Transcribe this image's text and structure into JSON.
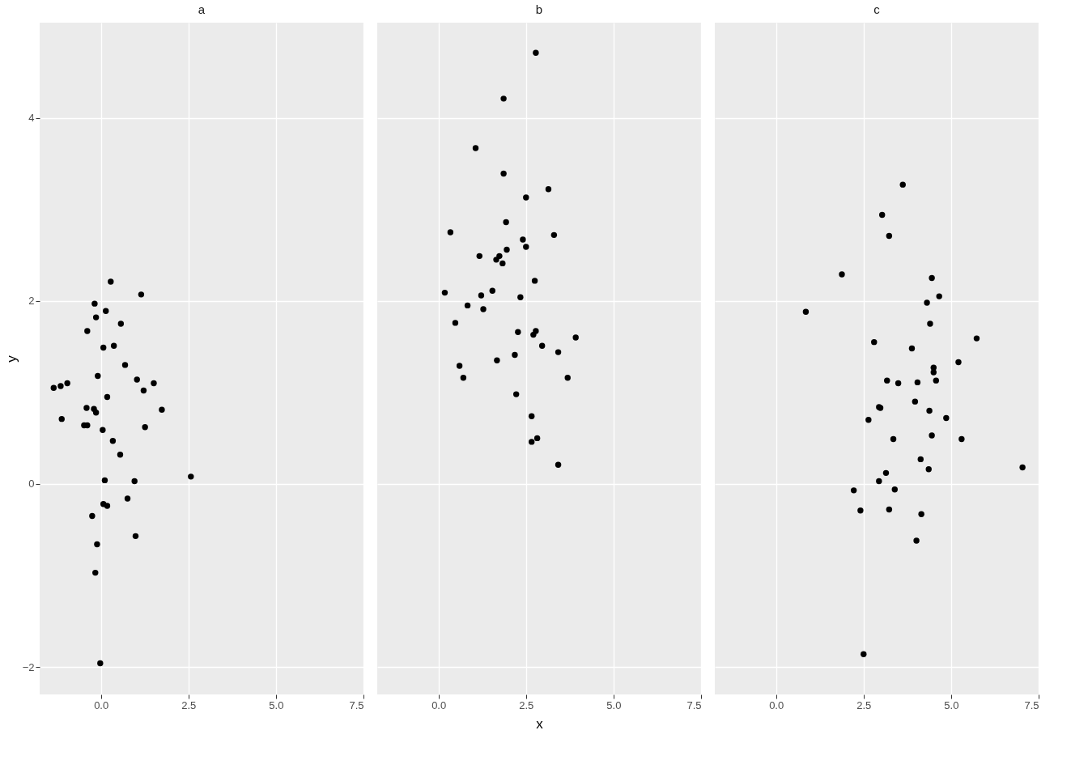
{
  "chart_data": [
    {
      "type": "scatter",
      "title": "a",
      "ylabel": "y",
      "marker": "circle",
      "grid": true,
      "xlim": [
        -1.75,
        7.5
      ],
      "ylim": [
        -2.3,
        5.04
      ],
      "xticks": [
        {
          "value": 0,
          "label": "0.0"
        },
        {
          "value": 2.5,
          "label": "2.5"
        },
        {
          "value": 5,
          "label": "5.0"
        },
        {
          "value": 7.5,
          "label": "7.5"
        }
      ],
      "yticks": [
        -2,
        0,
        2,
        4
      ],
      "series": [
        {
          "color": "#000000",
          "x": [
            -1.35,
            -1.15,
            -0.96,
            -1.12,
            -0.39,
            -0.18,
            -0.14,
            0.14,
            0.28,
            1.15,
            0.57,
            0.37,
            0.07,
            -0.09,
            0.69,
            1.03,
            1.51,
            1.22,
            0.18,
            1.74,
            -0.41,
            -0.48,
            -0.39,
            -0.2,
            -0.14,
            0.05,
            1.26,
            0.34,
            0.55,
            0.11,
            0.96,
            2.57,
            0.76,
            0.07,
            0.18,
            -0.25,
            0.99,
            -0.11,
            -0.16,
            -0.02
          ],
          "values": [
            1.05,
            1.07,
            1.1,
            0.71,
            1.67,
            1.97,
            1.82,
            1.89,
            2.21,
            2.07,
            1.75,
            1.51,
            1.49,
            1.18,
            1.3,
            1.14,
            1.1,
            1.02,
            0.95,
            0.81,
            0.83,
            0.64,
            0.64,
            0.82,
            0.78,
            0.59,
            0.62,
            0.47,
            0.32,
            0.04,
            0.03,
            0.08,
            -0.16,
            -0.22,
            -0.24,
            -0.35,
            -0.57,
            -0.66,
            -0.97,
            -1.96
          ]
        }
      ]
    },
    {
      "type": "scatter",
      "title": "b",
      "xlabel": "x",
      "marker": "circle",
      "grid": true,
      "tick_labels": "x",
      "xlim": [
        -1.75,
        7.5
      ],
      "ylim": [
        -2.3,
        5.04
      ],
      "xticks": [
        {
          "value": 0,
          "label": "0.0"
        },
        {
          "value": 2.5,
          "label": "2.5"
        },
        {
          "value": 5,
          "label": "5.0"
        },
        {
          "value": 7.5,
          "label": "7.5"
        }
      ],
      "yticks": [
        -2,
        0,
        2,
        4
      ],
      "series": [
        {
          "color": "#000000",
          "x": [
            2.78,
            1.86,
            1.06,
            1.86,
            2.5,
            3.14,
            0.34,
            3.3,
            1.93,
            1.17,
            1.74,
            1.65,
            1.83,
            1.95,
            2.41,
            2.5,
            0.18,
            1.22,
            1.54,
            2.34,
            2.75,
            0.83,
            1.28,
            0.48,
            2.27,
            2.78,
            2.71,
            3.92,
            2.96,
            3.42,
            1.67,
            2.18,
            0.6,
            0.71,
            3.69,
            2.22,
            2.66,
            2.66,
            2.82,
            3.42
          ],
          "values": [
            4.71,
            4.21,
            3.67,
            3.39,
            3.13,
            3.22,
            2.75,
            2.72,
            2.86,
            2.49,
            2.49,
            2.45,
            2.41,
            2.56,
            2.67,
            2.59,
            2.09,
            2.06,
            2.11,
            2.04,
            2.22,
            1.95,
            1.91,
            1.76,
            1.66,
            1.67,
            1.63,
            1.6,
            1.51,
            1.44,
            1.35,
            1.41,
            1.29,
            1.16,
            1.16,
            0.98,
            0.74,
            0.46,
            0.5,
            0.21
          ]
        }
      ]
    },
    {
      "type": "scatter",
      "title": "c",
      "marker": "circle",
      "grid": true,
      "tick_labels": "x",
      "xlim": [
        -1.75,
        7.5
      ],
      "ylim": [
        -2.3,
        5.04
      ],
      "xticks": [
        {
          "value": 0,
          "label": "0.0"
        },
        {
          "value": 2.5,
          "label": "2.5"
        },
        {
          "value": 5,
          "label": "5.0"
        },
        {
          "value": 7.5,
          "label": "7.5"
        }
      ],
      "yticks": [
        -2,
        0,
        2,
        4
      ],
      "series": [
        {
          "color": "#000000",
          "x": [
            3.62,
            3.03,
            3.23,
            1.88,
            0.85,
            4.45,
            4.66,
            4.31,
            4.4,
            5.73,
            2.8,
            3.88,
            5.21,
            4.5,
            4.5,
            3.17,
            3.49,
            4.04,
            4.57,
            3.97,
            2.94,
            2.98,
            4.38,
            4.86,
            2.64,
            4.45,
            3.35,
            5.3,
            4.13,
            7.04,
            4.36,
            3.14,
            2.94,
            2.22,
            3.39,
            2.41,
            3.23,
            4.15,
            4.01,
            2.5
          ],
          "values": [
            3.27,
            2.94,
            2.71,
            2.29,
            1.88,
            2.25,
            2.05,
            1.98,
            1.75,
            1.59,
            1.55,
            1.48,
            1.33,
            1.27,
            1.22,
            1.13,
            1.1,
            1.11,
            1.13,
            0.9,
            0.84,
            0.83,
            0.8,
            0.72,
            0.7,
            0.53,
            0.49,
            0.49,
            0.27,
            0.18,
            0.16,
            0.12,
            0.03,
            -0.07,
            -0.06,
            -0.29,
            -0.28,
            -0.33,
            -0.62,
            -1.86
          ]
        }
      ]
    }
  ]
}
